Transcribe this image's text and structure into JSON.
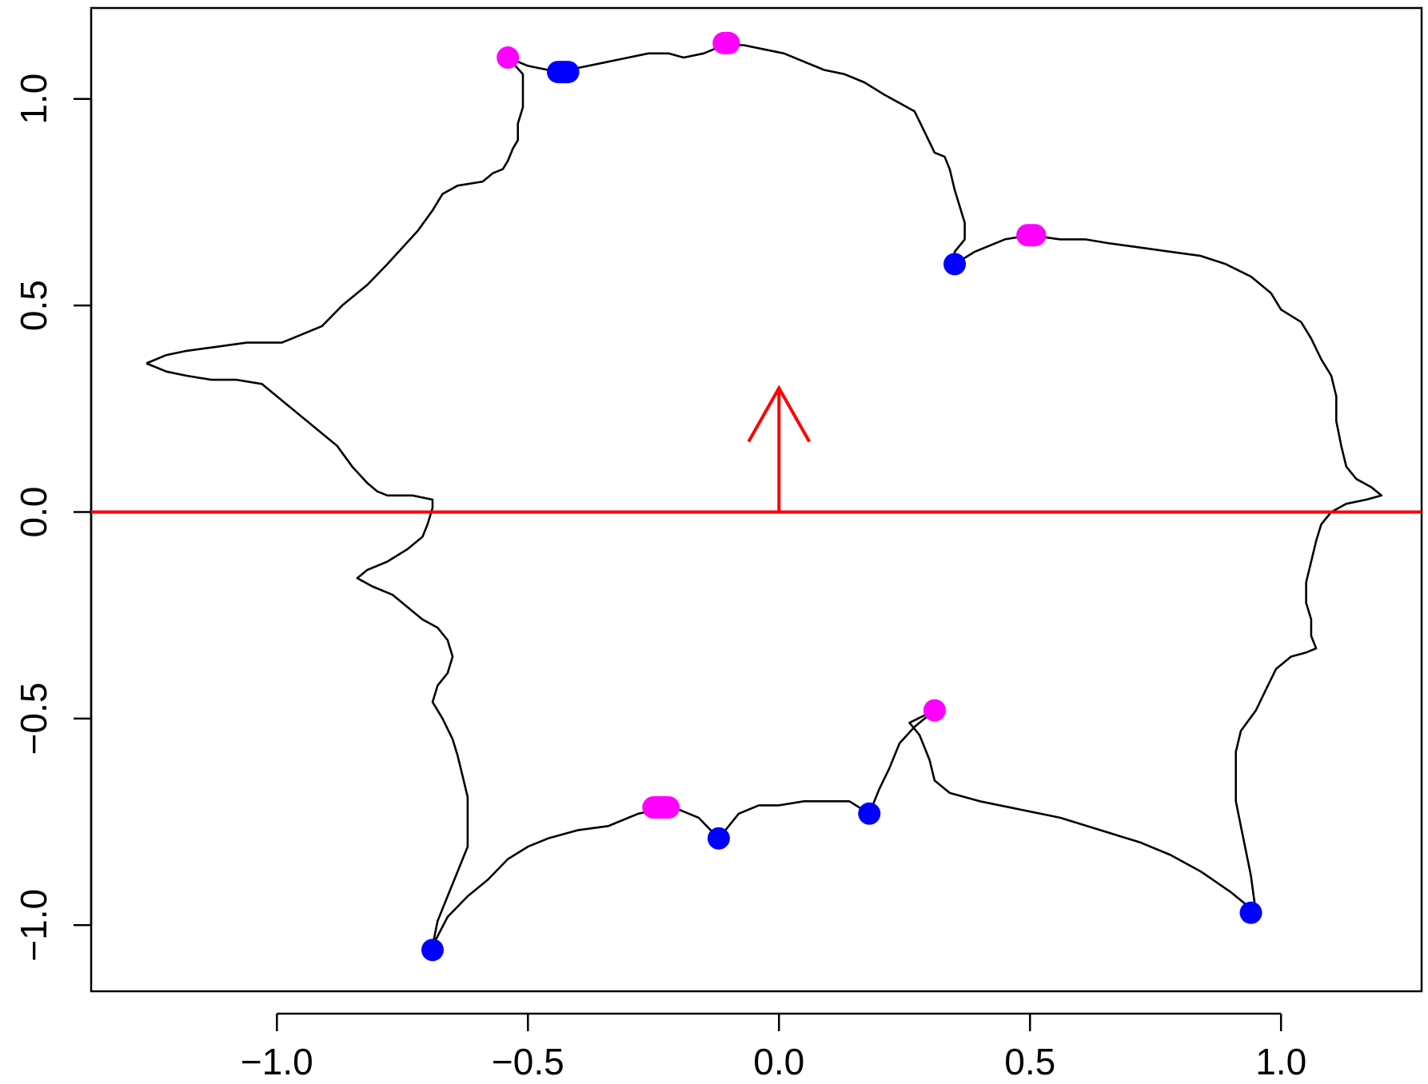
{
  "chart_data": {
    "type": "line",
    "title": "",
    "xlabel": "",
    "ylabel": "",
    "xlim": [
      -1.37,
      1.28
    ],
    "ylim": [
      -1.16,
      1.22
    ],
    "grid": false,
    "x_ticks": [
      -1.0,
      -0.5,
      0.0,
      0.5,
      1.0
    ],
    "x_tick_labels": [
      "−1.0",
      "−0.5",
      "0.0",
      "0.5",
      "1.0"
    ],
    "y_ticks": [
      -1.0,
      -0.5,
      0.0,
      0.5,
      1.0
    ],
    "y_tick_labels": [
      "−1.0",
      "−0.5",
      "0.0",
      "0.5",
      "1.0"
    ],
    "colors": {
      "outline": "#000000",
      "reference": "#ff0000",
      "blue_point": "#0000ff",
      "magenta_point": "#ff00ff"
    },
    "series": [
      {
        "type": "closed-curve",
        "color": "#000000",
        "points": [
          [
            -1.26,
            0.36
          ],
          [
            -1.22,
            0.38
          ],
          [
            -1.18,
            0.39
          ],
          [
            -1.12,
            0.4
          ],
          [
            -1.06,
            0.41
          ],
          [
            -0.99,
            0.41
          ],
          [
            -0.95,
            0.43
          ],
          [
            -0.91,
            0.45
          ],
          [
            -0.87,
            0.5
          ],
          [
            -0.82,
            0.55
          ],
          [
            -0.78,
            0.6
          ],
          [
            -0.75,
            0.64
          ],
          [
            -0.72,
            0.68
          ],
          [
            -0.69,
            0.73
          ],
          [
            -0.67,
            0.77
          ],
          [
            -0.64,
            0.79
          ],
          [
            -0.59,
            0.8
          ],
          [
            -0.57,
            0.82
          ],
          [
            -0.55,
            0.83
          ],
          [
            -0.54,
            0.85
          ],
          [
            -0.53,
            0.88
          ],
          [
            -0.52,
            0.9
          ],
          [
            -0.52,
            0.94
          ],
          [
            -0.51,
            0.98
          ],
          [
            -0.51,
            1.02
          ],
          [
            -0.51,
            1.06
          ],
          [
            -0.54,
            1.1
          ],
          [
            -0.5,
            1.08
          ],
          [
            -0.46,
            1.07
          ],
          [
            -0.42,
            1.07
          ],
          [
            -0.38,
            1.08
          ],
          [
            -0.34,
            1.09
          ],
          [
            -0.3,
            1.1
          ],
          [
            -0.26,
            1.11
          ],
          [
            -0.22,
            1.11
          ],
          [
            -0.19,
            1.1
          ],
          [
            -0.15,
            1.11
          ],
          [
            -0.11,
            1.13
          ],
          [
            -0.07,
            1.13
          ],
          [
            -0.03,
            1.12
          ],
          [
            0.01,
            1.11
          ],
          [
            0.05,
            1.09
          ],
          [
            0.09,
            1.07
          ],
          [
            0.13,
            1.06
          ],
          [
            0.17,
            1.04
          ],
          [
            0.21,
            1.01
          ],
          [
            0.24,
            0.99
          ],
          [
            0.27,
            0.97
          ],
          [
            0.29,
            0.92
          ],
          [
            0.31,
            0.87
          ],
          [
            0.33,
            0.86
          ],
          [
            0.34,
            0.83
          ],
          [
            0.35,
            0.78
          ],
          [
            0.36,
            0.74
          ],
          [
            0.37,
            0.7
          ],
          [
            0.37,
            0.66
          ],
          [
            0.35,
            0.63
          ],
          [
            0.35,
            0.6
          ],
          [
            0.39,
            0.63
          ],
          [
            0.45,
            0.66
          ],
          [
            0.5,
            0.67
          ],
          [
            0.56,
            0.66
          ],
          [
            0.61,
            0.66
          ],
          [
            0.66,
            0.65
          ],
          [
            0.72,
            0.64
          ],
          [
            0.78,
            0.63
          ],
          [
            0.84,
            0.62
          ],
          [
            0.89,
            0.6
          ],
          [
            0.94,
            0.57
          ],
          [
            0.98,
            0.53
          ],
          [
            1.0,
            0.49
          ],
          [
            1.04,
            0.46
          ],
          [
            1.06,
            0.42
          ],
          [
            1.08,
            0.37
          ],
          [
            1.1,
            0.33
          ],
          [
            1.11,
            0.28
          ],
          [
            1.11,
            0.22
          ],
          [
            1.12,
            0.16
          ],
          [
            1.13,
            0.11
          ],
          [
            1.15,
            0.08
          ],
          [
            1.18,
            0.06
          ],
          [
            1.2,
            0.04
          ],
          [
            1.17,
            0.03
          ],
          [
            1.13,
            0.02
          ],
          [
            1.1,
            0.0
          ],
          [
            1.08,
            -0.03
          ],
          [
            1.07,
            -0.07
          ],
          [
            1.06,
            -0.12
          ],
          [
            1.05,
            -0.17
          ],
          [
            1.05,
            -0.22
          ],
          [
            1.06,
            -0.26
          ],
          [
            1.06,
            -0.3
          ],
          [
            1.07,
            -0.33
          ],
          [
            1.05,
            -0.34
          ],
          [
            1.02,
            -0.35
          ],
          [
            0.99,
            -0.38
          ],
          [
            0.97,
            -0.43
          ],
          [
            0.95,
            -0.48
          ],
          [
            0.92,
            -0.53
          ],
          [
            0.91,
            -0.58
          ],
          [
            0.91,
            -0.64
          ],
          [
            0.91,
            -0.7
          ],
          [
            0.92,
            -0.76
          ],
          [
            0.93,
            -0.82
          ],
          [
            0.94,
            -0.88
          ],
          [
            0.95,
            -0.97
          ],
          [
            0.9,
            -0.92
          ],
          [
            0.84,
            -0.87
          ],
          [
            0.78,
            -0.83
          ],
          [
            0.72,
            -0.8
          ],
          [
            0.64,
            -0.77
          ],
          [
            0.56,
            -0.74
          ],
          [
            0.48,
            -0.72
          ],
          [
            0.4,
            -0.7
          ],
          [
            0.34,
            -0.68
          ],
          [
            0.31,
            -0.65
          ],
          [
            0.3,
            -0.6
          ],
          [
            0.28,
            -0.54
          ],
          [
            0.26,
            -0.51
          ],
          [
            0.31,
            -0.48
          ],
          [
            0.27,
            -0.52
          ],
          [
            0.24,
            -0.56
          ],
          [
            0.22,
            -0.62
          ],
          [
            0.2,
            -0.67
          ],
          [
            0.18,
            -0.73
          ],
          [
            0.14,
            -0.7
          ],
          [
            0.1,
            -0.7
          ],
          [
            0.05,
            -0.7
          ],
          [
            0.0,
            -0.71
          ],
          [
            -0.04,
            -0.71
          ],
          [
            -0.08,
            -0.73
          ],
          [
            -0.12,
            -0.79
          ],
          [
            -0.16,
            -0.74
          ],
          [
            -0.2,
            -0.72
          ],
          [
            -0.24,
            -0.72
          ],
          [
            -0.28,
            -0.73
          ],
          [
            -0.34,
            -0.76
          ],
          [
            -0.4,
            -0.77
          ],
          [
            -0.46,
            -0.79
          ],
          [
            -0.5,
            -0.81
          ],
          [
            -0.54,
            -0.84
          ],
          [
            -0.58,
            -0.89
          ],
          [
            -0.62,
            -0.93
          ],
          [
            -0.66,
            -0.98
          ],
          [
            -0.69,
            -1.05
          ],
          [
            -0.68,
            -0.99
          ],
          [
            -0.66,
            -0.93
          ],
          [
            -0.64,
            -0.87
          ],
          [
            -0.62,
            -0.81
          ],
          [
            -0.62,
            -0.75
          ],
          [
            -0.62,
            -0.69
          ],
          [
            -0.63,
            -0.64
          ],
          [
            -0.64,
            -0.59
          ],
          [
            -0.65,
            -0.55
          ],
          [
            -0.67,
            -0.5
          ],
          [
            -0.69,
            -0.46
          ],
          [
            -0.68,
            -0.42
          ],
          [
            -0.66,
            -0.39
          ],
          [
            -0.65,
            -0.35
          ],
          [
            -0.66,
            -0.31
          ],
          [
            -0.68,
            -0.28
          ],
          [
            -0.71,
            -0.26
          ],
          [
            -0.74,
            -0.23
          ],
          [
            -0.77,
            -0.2
          ],
          [
            -0.81,
            -0.18
          ],
          [
            -0.84,
            -0.16
          ],
          [
            -0.82,
            -0.14
          ],
          [
            -0.78,
            -0.12
          ],
          [
            -0.74,
            -0.09
          ],
          [
            -0.71,
            -0.06
          ],
          [
            -0.7,
            -0.03
          ],
          [
            -0.69,
            0.01
          ],
          [
            -0.69,
            0.03
          ],
          [
            -0.73,
            0.04
          ],
          [
            -0.78,
            0.04
          ],
          [
            -0.8,
            0.05
          ],
          [
            -0.82,
            0.07
          ],
          [
            -0.85,
            0.11
          ],
          [
            -0.88,
            0.16
          ],
          [
            -0.91,
            0.19
          ],
          [
            -0.94,
            0.22
          ],
          [
            -0.97,
            0.25
          ],
          [
            -1.0,
            0.28
          ],
          [
            -1.03,
            0.31
          ],
          [
            -1.08,
            0.32
          ],
          [
            -1.13,
            0.32
          ],
          [
            -1.18,
            0.33
          ],
          [
            -1.22,
            0.34
          ],
          [
            -1.26,
            0.36
          ]
        ]
      }
    ],
    "reference_line": {
      "y": 0.0,
      "color": "#ff0000"
    },
    "arrow": {
      "x": 0.0,
      "from_y": 0.0,
      "to_y": 0.3,
      "color": "#ff0000"
    },
    "points_blue": [
      [
        0.35,
        0.6
      ],
      [
        -0.12,
        -0.79
      ],
      [
        0.18,
        -0.73
      ],
      [
        -0.69,
        -1.06
      ],
      [
        0.94,
        -0.97
      ]
    ],
    "segments_blue": [
      [
        [
          -0.44,
          1.065
        ],
        [
          -0.42,
          1.065
        ]
      ]
    ],
    "points_magenta": [
      [
        -0.54,
        1.1
      ],
      [
        0.31,
        -0.48
      ]
    ],
    "segments_magenta": [
      [
        [
          -0.11,
          1.135
        ],
        [
          -0.1,
          1.135
        ]
      ],
      [
        [
          0.495,
          0.67
        ],
        [
          0.51,
          0.67
        ]
      ],
      [
        [
          -0.25,
          -0.715
        ],
        [
          -0.22,
          -0.715
        ]
      ]
    ]
  }
}
